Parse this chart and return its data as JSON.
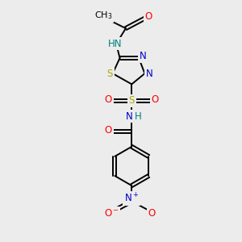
{
  "bg_color": "#ececec",
  "bond_color": "#000000",
  "colors": {
    "O": "#ff0000",
    "N": "#0000cc",
    "S": "#aaaa00",
    "NH": "#008080",
    "C": "#000000"
  },
  "figsize": [
    3.0,
    3.0
  ],
  "dpi": 100
}
